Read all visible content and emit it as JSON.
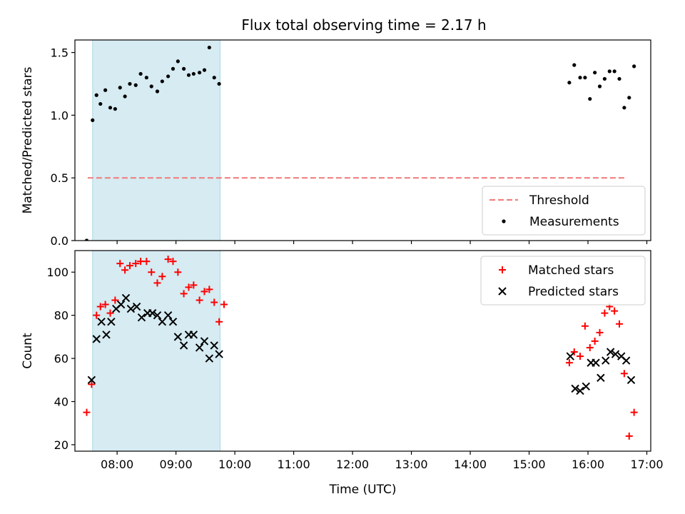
{
  "figure": {
    "title": "Flux total observing time = 2.17 h"
  },
  "chart_data": [
    {
      "type": "scatter",
      "ylabel": "Matched/Predicted stars",
      "xlabel": "",
      "xlim": [
        "07:17",
        "17:04"
      ],
      "ylim": [
        0,
        1.6
      ],
      "yticks": [
        0.0,
        0.5,
        1.0,
        1.5
      ],
      "ytick_labels": [
        "0.0",
        "0.5",
        "1.0",
        "1.5"
      ],
      "grid": false,
      "legend_position": "lower-right",
      "shaded_band": {
        "x": [
          "07:35",
          "09:45"
        ],
        "color": "#add8e6"
      },
      "series": [
        {
          "name": "Threshold",
          "kind": "dashed-line",
          "color": "#f08080",
          "x": [
            "07:30",
            "16:40"
          ],
          "y": [
            0.5,
            0.5
          ]
        },
        {
          "name": "Measurements",
          "kind": "dot",
          "color": "#000000",
          "x": [
            "07:29",
            "07:35",
            "07:39",
            "07:43",
            "07:48",
            "07:53",
            "07:58",
            "08:03",
            "08:08",
            "08:13",
            "08:19",
            "08:24",
            "08:30",
            "08:35",
            "08:41",
            "08:46",
            "08:52",
            "08:57",
            "09:02",
            "09:08",
            "09:13",
            "09:18",
            "09:24",
            "09:29",
            "09:34",
            "09:39",
            "09:44",
            "15:41",
            "15:46",
            "15:52",
            "15:57",
            "16:02",
            "16:07",
            "16:12",
            "16:17",
            "16:22",
            "16:27",
            "16:32",
            "16:37",
            "16:42",
            "16:47"
          ],
          "y": [
            0.0,
            0.96,
            1.16,
            1.09,
            1.2,
            1.06,
            1.05,
            1.22,
            1.15,
            1.25,
            1.24,
            1.33,
            1.3,
            1.23,
            1.19,
            1.27,
            1.31,
            1.37,
            1.43,
            1.37,
            1.32,
            1.33,
            1.34,
            1.36,
            1.54,
            1.3,
            1.25,
            1.26,
            1.4,
            1.3,
            1.3,
            1.13,
            1.34,
            1.23,
            1.29,
            1.35,
            1.35,
            1.29,
            1.06,
            1.14,
            1.39
          ]
        }
      ]
    },
    {
      "type": "scatter",
      "ylabel": "Count",
      "xlabel": "Time (UTC)",
      "xlim": [
        "07:17",
        "17:04"
      ],
      "ylim": [
        17,
        110
      ],
      "yticks": [
        20,
        40,
        60,
        80,
        100
      ],
      "ytick_labels": [
        "20",
        "40",
        "60",
        "80",
        "100"
      ],
      "xticks": [
        "08:00",
        "09:00",
        "10:00",
        "11:00",
        "12:00",
        "13:00",
        "14:00",
        "15:00",
        "16:00",
        "17:00"
      ],
      "xtick_labels": [
        "08:00",
        "09:00",
        "10:00",
        "11:00",
        "12:00",
        "13:00",
        "14:00",
        "15:00",
        "16:00",
        "17:00"
      ],
      "grid": false,
      "legend_position": "upper-right",
      "shaded_band": {
        "x": [
          "07:35",
          "09:45"
        ],
        "color": "#add8e6"
      },
      "series": [
        {
          "name": "Matched stars",
          "kind": "plus",
          "color": "#ff0000",
          "x": [
            "07:29",
            "07:34",
            "07:39",
            "07:43",
            "07:48",
            "07:53",
            "07:58",
            "08:03",
            "08:08",
            "08:13",
            "08:19",
            "08:24",
            "08:30",
            "08:35",
            "08:41",
            "08:46",
            "08:52",
            "08:57",
            "09:02",
            "09:08",
            "09:13",
            "09:18",
            "09:24",
            "09:29",
            "09:34",
            "09:39",
            "09:44",
            "09:49",
            "15:41",
            "15:46",
            "15:52",
            "15:57",
            "16:02",
            "16:07",
            "16:12",
            "16:17",
            "16:22",
            "16:27",
            "16:32",
            "16:37",
            "16:42",
            "16:47"
          ],
          "y": [
            35,
            48,
            80,
            84,
            85,
            81,
            87,
            104,
            101,
            103,
            104,
            105,
            105,
            100,
            95,
            98,
            106,
            105,
            100,
            90,
            93,
            94,
            87,
            91,
            92,
            86,
            77,
            85,
            58,
            63,
            61,
            75,
            65,
            68,
            72,
            81,
            84,
            82,
            76,
            53,
            24,
            35
          ]
        },
        {
          "name": "Predicted stars",
          "kind": "x",
          "color": "#000000",
          "x": [
            "07:34",
            "07:39",
            "07:44",
            "07:49",
            "07:54",
            "07:59",
            "08:04",
            "08:09",
            "08:14",
            "08:20",
            "08:25",
            "08:31",
            "08:36",
            "08:41",
            "08:46",
            "08:52",
            "08:57",
            "09:02",
            "09:08",
            "09:13",
            "09:18",
            "09:24",
            "09:29",
            "09:34",
            "09:39",
            "09:44",
            "15:42",
            "15:47",
            "15:52",
            "15:58",
            "16:03",
            "16:08",
            "16:13",
            "16:18",
            "16:23",
            "16:28",
            "16:34",
            "16:39",
            "16:44"
          ],
          "y": [
            50,
            69,
            77,
            71,
            77,
            83,
            85,
            88,
            83,
            84,
            79,
            81,
            81,
            80,
            77,
            80,
            77,
            70,
            66,
            71,
            71,
            65,
            68,
            60,
            66,
            62,
            61,
            46,
            45,
            47,
            58,
            58,
            51,
            59,
            63,
            62,
            61,
            59,
            50
          ]
        }
      ]
    }
  ]
}
